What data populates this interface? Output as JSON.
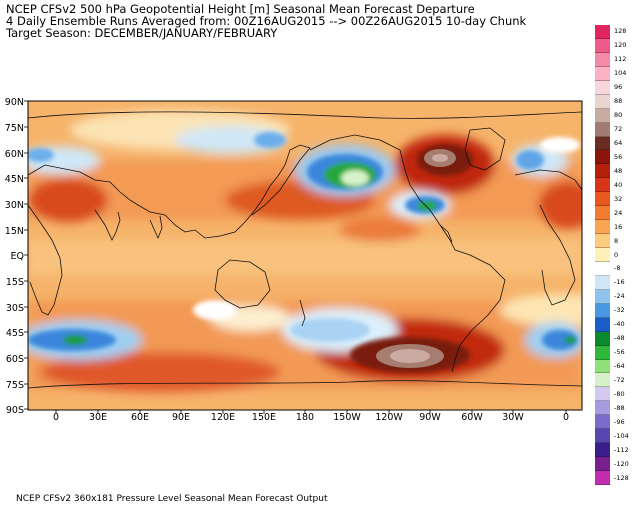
{
  "header": {
    "line1": "NCEP CFSv2 500 hPa Geopotential Height [m] Seasonal Mean Forecast Departure",
    "line2": "4 Daily Ensemble Runs Averaged from: 00Z16AUG2015 --> 00Z26AUG2015 10-day Chunk",
    "line3": "Target Season: DECEMBER/JANUARY/FEBRUARY"
  },
  "footer": "NCEP CFSv2 360x181 Pressure Level Seasonal Mean Forecast Output",
  "map": {
    "lat_labels": [
      "90N",
      "75N",
      "60N",
      "45N",
      "30N",
      "15N",
      "EQ",
      "15S",
      "30S",
      "45S",
      "60S",
      "75S",
      "90S"
    ],
    "lon_labels": [
      "0",
      "30E",
      "60E",
      "90E",
      "120E",
      "150E",
      "180",
      "150W",
      "120W",
      "90W",
      "60W",
      "30W",
      "0"
    ],
    "anomaly_centers": [
      {
        "lon": -95,
        "lat": -63,
        "value": 80,
        "kind": "positive"
      },
      {
        "lon": -75,
        "lat": 57,
        "value": 72,
        "kind": "positive"
      },
      {
        "lon": -135,
        "lat": 50,
        "value": -48,
        "kind": "negative"
      },
      {
        "lon": 30,
        "lat": -50,
        "value": -40,
        "kind": "negative"
      },
      {
        "lon": -20,
        "lat": 55,
        "value": -24,
        "kind": "negative"
      },
      {
        "lon": 140,
        "lat": 62,
        "value": -24,
        "kind": "negative"
      },
      {
        "lon": -150,
        "lat": -42,
        "value": -16,
        "kind": "negative"
      },
      {
        "lon": 10,
        "lat": 32,
        "value": 40,
        "kind": "positive"
      },
      {
        "lon": 180,
        "lat": 33,
        "value": 40,
        "kind": "positive"
      }
    ]
  },
  "colorbar": {
    "levels": [
      "128",
      "120",
      "112",
      "104",
      "96",
      "88",
      "80",
      "72",
      "64",
      "56",
      "48",
      "40",
      "32",
      "24",
      "16",
      "8",
      "0",
      "-8",
      "-16",
      "-24",
      "-32",
      "-40",
      "-48",
      "-56",
      "-64",
      "-72",
      "-80",
      "-88",
      "-96",
      "-104",
      "-112",
      "-120",
      "-128"
    ],
    "colors": [
      "#e0245e",
      "#ee5a8a",
      "#f48aa8",
      "#f8b2c4",
      "#f7d6dc",
      "#e8d5cf",
      "#c8aba2",
      "#a07c72",
      "#6a2c22",
      "#8c1408",
      "#b42008",
      "#d8341a",
      "#e8571e",
      "#f37c32",
      "#f8a452",
      "#fbcb7e",
      "#fdf0b8",
      "#ffffff",
      "#cfe6f8",
      "#8dc4ef",
      "#4b98e2",
      "#1a5fc8",
      "#0a8a2c",
      "#2fb83a",
      "#8fe078",
      "#d8f0c8",
      "#d4c8f0",
      "#a79bdf",
      "#7b6ccb",
      "#5a46b0",
      "#3a1e8c",
      "#7a1f8f",
      "#c22cb0"
    ]
  }
}
